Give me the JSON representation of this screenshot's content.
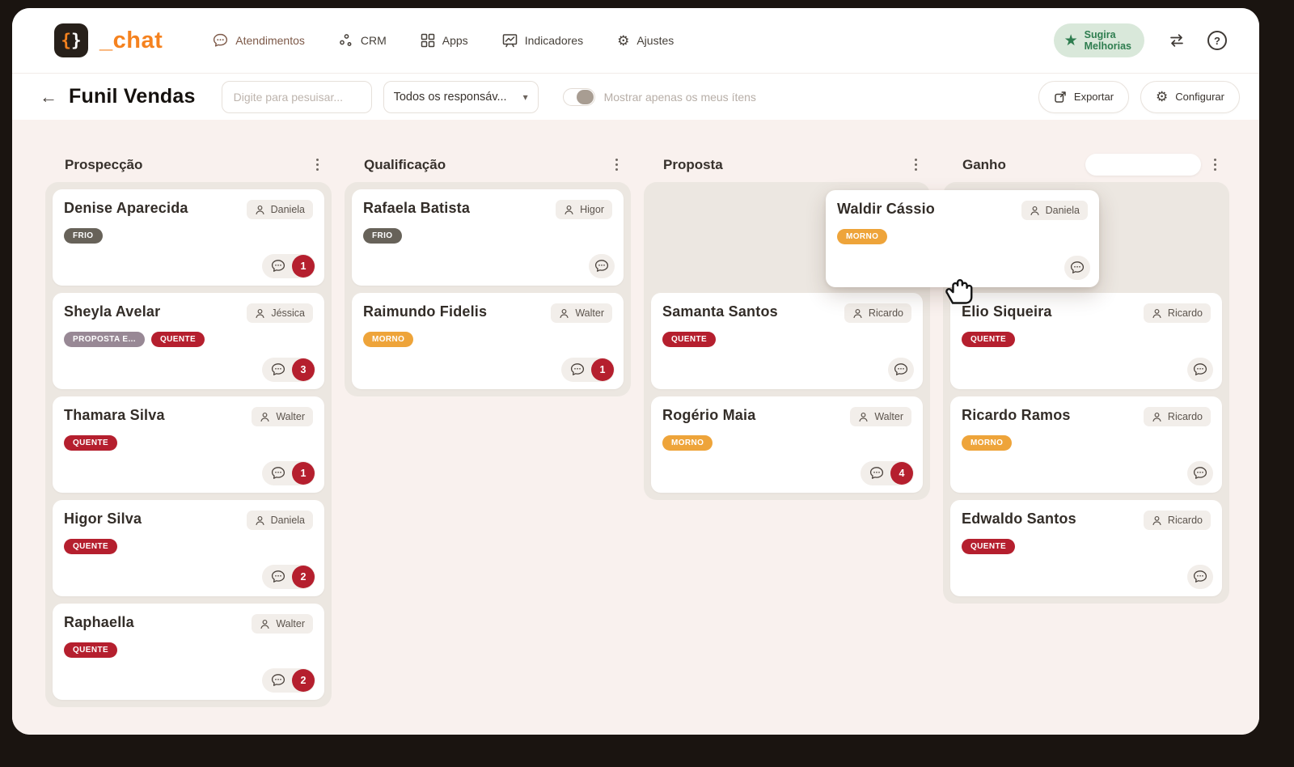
{
  "brand": {
    "logo_braces_open": "{",
    "logo_braces_close": "}",
    "name": "_chat"
  },
  "nav": [
    {
      "id": "atendimentos",
      "label": "Atendimentos",
      "active": true
    },
    {
      "id": "crm",
      "label": "CRM",
      "active": false
    },
    {
      "id": "apps",
      "label": "Apps",
      "active": false
    },
    {
      "id": "indicadores",
      "label": "Indicadores",
      "active": false
    },
    {
      "id": "ajustes",
      "label": "Ajustes",
      "active": false
    }
  ],
  "top_right": {
    "suggest_line1": "Sugira",
    "suggest_line2": "Melhorias",
    "icons": [
      "star-icon",
      "swap-arrows-icon",
      "help-icon"
    ]
  },
  "toolbar": {
    "back_arrow": "←",
    "title": "Funil Vendas",
    "search_placeholder": "Digite para pesuisar...",
    "filter_value": "Todos os responsáv...",
    "filter_caret": "▾",
    "toggle_label": "Mostrar apenas os meus ítens",
    "toggle_on": false,
    "export_label": "Exportar",
    "configure_label": "Configurar"
  },
  "colors": {
    "brand_orange": "#f5821f",
    "suggest_green": "#2e7d4f",
    "badge_red": "#b51f2e",
    "content_bg": "#f9f1ee",
    "column_bg": "#ece7e1"
  },
  "board": {
    "tag_colors": {
      "FRIO": "#676259",
      "QUENTE": "#b51f2e",
      "MORNO": "#eea43a",
      "PROPOSTA E...": "#988895"
    },
    "columns": [
      {
        "title": "Prospecção",
        "has_drop_placeholder": false,
        "header_pill": false,
        "cards": [
          {
            "name": "Denise Aparecida",
            "assignee": "Daniela",
            "tags": [
              "FRIO"
            ],
            "badge": "1"
          },
          {
            "name": "Sheyla Avelar",
            "assignee": "Jéssica",
            "tags": [
              "PROPOSTA E...",
              "QUENTE"
            ],
            "badge": "3"
          },
          {
            "name": "Thamara Silva",
            "assignee": "Walter",
            "tags": [
              "QUENTE"
            ],
            "badge": "1"
          },
          {
            "name": "Higor Silva",
            "assignee": "Daniela",
            "tags": [
              "QUENTE"
            ],
            "badge": "2"
          },
          {
            "name": "Raphaella",
            "assignee": "Walter",
            "tags": [
              "QUENTE"
            ],
            "badge": "2"
          }
        ]
      },
      {
        "title": "Qualificação",
        "has_drop_placeholder": false,
        "header_pill": false,
        "cards": [
          {
            "name": "Rafaela Batista",
            "assignee": "Higor",
            "tags": [
              "FRIO"
            ],
            "badge": null
          },
          {
            "name": "Raimundo Fidelis",
            "assignee": "Walter",
            "tags": [
              "MORNO"
            ],
            "badge": "1"
          }
        ]
      },
      {
        "title": "Proposta",
        "has_drop_placeholder": true,
        "header_pill": false,
        "cards": [
          {
            "name": "Samanta Santos",
            "assignee": "Ricardo",
            "tags": [
              "QUENTE"
            ],
            "badge": null
          },
          {
            "name": "Rogério Maia",
            "assignee": "Walter",
            "tags": [
              "MORNO"
            ],
            "badge": "4"
          }
        ]
      },
      {
        "title": "Ganho",
        "has_drop_placeholder": true,
        "header_pill": true,
        "cards": [
          {
            "name": "Elio Siqueira",
            "assignee": "Ricardo",
            "tags": [
              "QUENTE"
            ],
            "badge": null
          },
          {
            "name": "Ricardo Ramos",
            "assignee": "Ricardo",
            "tags": [
              "MORNO"
            ],
            "badge": null
          },
          {
            "name": "Edwaldo Santos",
            "assignee": "Ricardo",
            "tags": [
              "QUENTE"
            ],
            "badge": null
          }
        ]
      }
    ]
  },
  "drag_card": {
    "name": "Waldir Cássio",
    "assignee": "Daniela",
    "tags": [
      "MORNO"
    ],
    "badge": null
  }
}
